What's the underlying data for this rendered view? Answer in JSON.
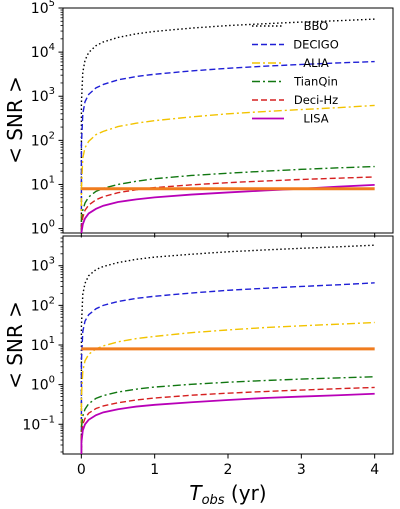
{
  "colors": {
    "BBO": "#000000",
    "DECIGO": "#1f1fd6",
    "ALIA": "#f2c300",
    "TianQin": "#117711",
    "Deci-Hz": "#d62020",
    "LISA": "#b800b8",
    "threshold": "#f07c1e"
  },
  "chart_data": [
    {
      "type": "line",
      "panel": "top",
      "xlabel_shared": true,
      "ylabel": "< SNR >",
      "yscale": "log",
      "ylim_exp": [
        -0.1,
        5
      ],
      "xlim": [
        -0.25,
        4.25
      ],
      "yticks": [
        {
          "base": "10",
          "exp": "0",
          "v": 0
        },
        {
          "base": "10",
          "exp": "1",
          "v": 1
        },
        {
          "base": "10",
          "exp": "2",
          "v": 2
        },
        {
          "base": "10",
          "exp": "3",
          "v": 3
        },
        {
          "base": "10",
          "exp": "4",
          "v": 4
        },
        {
          "base": "10",
          "exp": "5",
          "v": 5
        }
      ],
      "legend": {
        "placement": "upper right",
        "entries": [
          "BBO",
          "DECIGO",
          "ALIA",
          "TianQin",
          "Deci-Hz",
          "LISA"
        ]
      },
      "series": [
        {
          "name": "BBO",
          "style": "dotted",
          "x": [
            0.001,
            0.02,
            0.05,
            0.1,
            0.2,
            0.3,
            0.5,
            0.75,
            1,
            1.5,
            2,
            2.5,
            3,
            3.5,
            4
          ],
          "y": [
            700,
            3500,
            6500,
            9800,
            14000,
            17000,
            21500,
            26000,
            29500,
            35000,
            40000,
            44000,
            48000,
            51500,
            56000
          ]
        },
        {
          "name": "DECIGO",
          "style": "dashed",
          "x": [
            0.001,
            0.02,
            0.05,
            0.1,
            0.2,
            0.3,
            0.5,
            0.75,
            1,
            1.5,
            2,
            2.5,
            3,
            3.5,
            4
          ],
          "y": [
            80,
            400,
            750,
            1100,
            1550,
            1850,
            2350,
            2800,
            3150,
            3750,
            4300,
            4800,
            5250,
            5700,
            6100
          ]
        },
        {
          "name": "ALIA",
          "style": "dashdot",
          "x": [
            0.001,
            0.02,
            0.05,
            0.1,
            0.2,
            0.3,
            0.5,
            0.75,
            1,
            1.5,
            2,
            2.5,
            3,
            3.5,
            4
          ],
          "y": [
            8,
            40,
            68,
            95,
            135,
            160,
            205,
            245,
            280,
            340,
            400,
            450,
            500,
            550,
            620
          ]
        },
        {
          "name": "TianQin",
          "style": "dashdot",
          "x": [
            0.001,
            0.02,
            0.05,
            0.1,
            0.2,
            0.3,
            0.5,
            0.75,
            1,
            1.5,
            2,
            2.5,
            3,
            3.5,
            4
          ],
          "y": [
            1.5,
            2.6,
            3.8,
            5.2,
            7,
            8.2,
            10,
            11.8,
            13.5,
            16,
            18,
            20,
            22,
            23.8,
            25.5
          ]
        },
        {
          "name": "Deci-Hz",
          "style": "dashed",
          "x": [
            0.001,
            0.02,
            0.05,
            0.1,
            0.2,
            0.3,
            0.5,
            0.75,
            1,
            1.5,
            2,
            2.5,
            3,
            3.5,
            4
          ],
          "y": [
            1.0,
            1.8,
            2.6,
            3.4,
            4.5,
            5.3,
            6.5,
            7.6,
            8.5,
            9.8,
            11,
            12,
            13,
            13.9,
            14.8
          ]
        },
        {
          "name": "LISA",
          "style": "solid",
          "x": [
            0.001,
            0.02,
            0.05,
            0.1,
            0.2,
            0.3,
            0.5,
            0.75,
            1,
            1.5,
            2,
            2.5,
            3,
            3.5,
            4
          ],
          "y": [
            0.8,
            1.25,
            1.7,
            2.2,
            2.8,
            3.3,
            4.0,
            4.6,
            5.1,
            5.9,
            6.6,
            7.3,
            8.0,
            8.9,
            9.8
          ]
        },
        {
          "name": "threshold",
          "style": "thick",
          "x": [
            0,
            4
          ],
          "y": [
            8,
            8
          ]
        }
      ]
    },
    {
      "type": "line",
      "panel": "bottom",
      "ylabel": "< SNR >",
      "xlabel": "T_obs (yr)",
      "yscale": "log",
      "ylim_exp": [
        -1.75,
        3.75
      ],
      "xlim": [
        -0.25,
        4.25
      ],
      "xticks": [
        0,
        1,
        2,
        3,
        4
      ],
      "yticks": [
        {
          "base": "10",
          "exp": "−1",
          "v": -1
        },
        {
          "base": "10",
          "exp": "0",
          "v": 0
        },
        {
          "base": "10",
          "exp": "1",
          "v": 1
        },
        {
          "base": "10",
          "exp": "2",
          "v": 2
        },
        {
          "base": "10",
          "exp": "3",
          "v": 3
        }
      ],
      "series": [
        {
          "name": "BBO",
          "style": "dotted",
          "x": [
            0.001,
            0.02,
            0.05,
            0.1,
            0.2,
            0.3,
            0.5,
            0.75,
            1,
            1.5,
            2,
            2.5,
            3,
            3.5,
            4
          ],
          "y": [
            30,
            190,
            360,
            560,
            800,
            960,
            1200,
            1450,
            1650,
            1950,
            2250,
            2500,
            2750,
            3000,
            3300
          ]
        },
        {
          "name": "DECIGO",
          "style": "dashed",
          "x": [
            0.001,
            0.02,
            0.05,
            0.1,
            0.2,
            0.3,
            0.5,
            0.75,
            1,
            1.5,
            2,
            2.5,
            3,
            3.5,
            4
          ],
          "y": [
            4,
            22,
            40,
            58,
            82,
            100,
            125,
            150,
            170,
            205,
            240,
            270,
            300,
            330,
            370
          ]
        },
        {
          "name": "ALIA",
          "style": "dashdot",
          "x": [
            0.001,
            0.02,
            0.05,
            0.1,
            0.2,
            0.3,
            0.5,
            0.75,
            1,
            1.5,
            2,
            2.5,
            3,
            3.5,
            4
          ],
          "y": [
            0.5,
            2.2,
            4,
            5.8,
            8,
            9.5,
            12,
            14.5,
            16.5,
            20.5,
            24,
            27.5,
            30.5,
            33.5,
            37
          ]
        },
        {
          "name": "TianQin",
          "style": "dashdot",
          "x": [
            0.001,
            0.02,
            0.05,
            0.1,
            0.2,
            0.3,
            0.5,
            0.75,
            1,
            1.5,
            2,
            2.5,
            3,
            3.5,
            4
          ],
          "y": [
            0.08,
            0.16,
            0.24,
            0.33,
            0.45,
            0.53,
            0.65,
            0.77,
            0.87,
            1.02,
            1.15,
            1.27,
            1.38,
            1.48,
            1.58
          ]
        },
        {
          "name": "Deci-Hz",
          "style": "dashed",
          "x": [
            0.001,
            0.02,
            0.05,
            0.1,
            0.2,
            0.3,
            0.5,
            0.75,
            1,
            1.5,
            2,
            2.5,
            3,
            3.5,
            4
          ],
          "y": [
            0.05,
            0.1,
            0.14,
            0.19,
            0.25,
            0.29,
            0.35,
            0.41,
            0.46,
            0.54,
            0.61,
            0.67,
            0.73,
            0.79,
            0.85
          ]
        },
        {
          "name": "LISA",
          "style": "solid",
          "x": [
            0.001,
            0.02,
            0.05,
            0.1,
            0.2,
            0.3,
            0.5,
            0.75,
            1,
            1.5,
            2,
            2.5,
            3,
            3.5,
            4
          ],
          "y": [
            0.035,
            0.07,
            0.1,
            0.13,
            0.17,
            0.2,
            0.24,
            0.28,
            0.31,
            0.36,
            0.41,
            0.46,
            0.5,
            0.54,
            0.59
          ]
        },
        {
          "name": "threshold",
          "style": "thick",
          "x": [
            0,
            4
          ],
          "y": [
            8,
            8
          ]
        }
      ]
    }
  ],
  "labels": {
    "ylabel_top": "< SNR >",
    "ylabel_bottom": "< SNR >",
    "xlabel_main": "T",
    "xlabel_sub": "obs",
    "xlabel_unit": " (yr)"
  }
}
